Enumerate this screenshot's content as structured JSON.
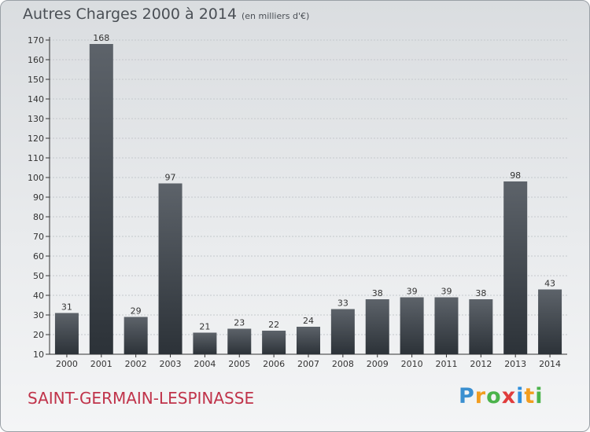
{
  "title": "Autres Charges 2000 à 2014",
  "subtitle": "(en milliers d'€)",
  "commune": "SAINT-GERMAIN-LESPINASSE",
  "logo": {
    "letters": [
      "P",
      "r",
      "o",
      "x",
      "i",
      "t",
      "i"
    ],
    "colors": [
      "#3a8fd0",
      "#f29d1f",
      "#4bb34b",
      "#e03c3c",
      "#2f8fdc",
      "#f29d1f",
      "#4bb34b"
    ]
  },
  "colors": {
    "bar_top": "#5d636a",
    "bar_bottom": "#2c3238",
    "grid": "#c4c8cc",
    "axis": "#333333"
  },
  "chart_data": {
    "type": "bar",
    "title": "Autres Charges 2000 à 2014",
    "ylabel": "",
    "xlabel": "",
    "categories": [
      "2000",
      "2001",
      "2002",
      "2003",
      "2004",
      "2005",
      "2006",
      "2007",
      "2008",
      "2009",
      "2010",
      "2011",
      "2012",
      "2013",
      "2014"
    ],
    "values": [
      31,
      168,
      29,
      97,
      21,
      23,
      22,
      24,
      33,
      38,
      39,
      39,
      38,
      98,
      43
    ],
    "ylim": [
      10,
      170
    ],
    "yticks": [
      10,
      20,
      30,
      40,
      50,
      60,
      70,
      80,
      90,
      100,
      110,
      120,
      130,
      140,
      150,
      160,
      170
    ],
    "grid": true,
    "legend": "none"
  }
}
